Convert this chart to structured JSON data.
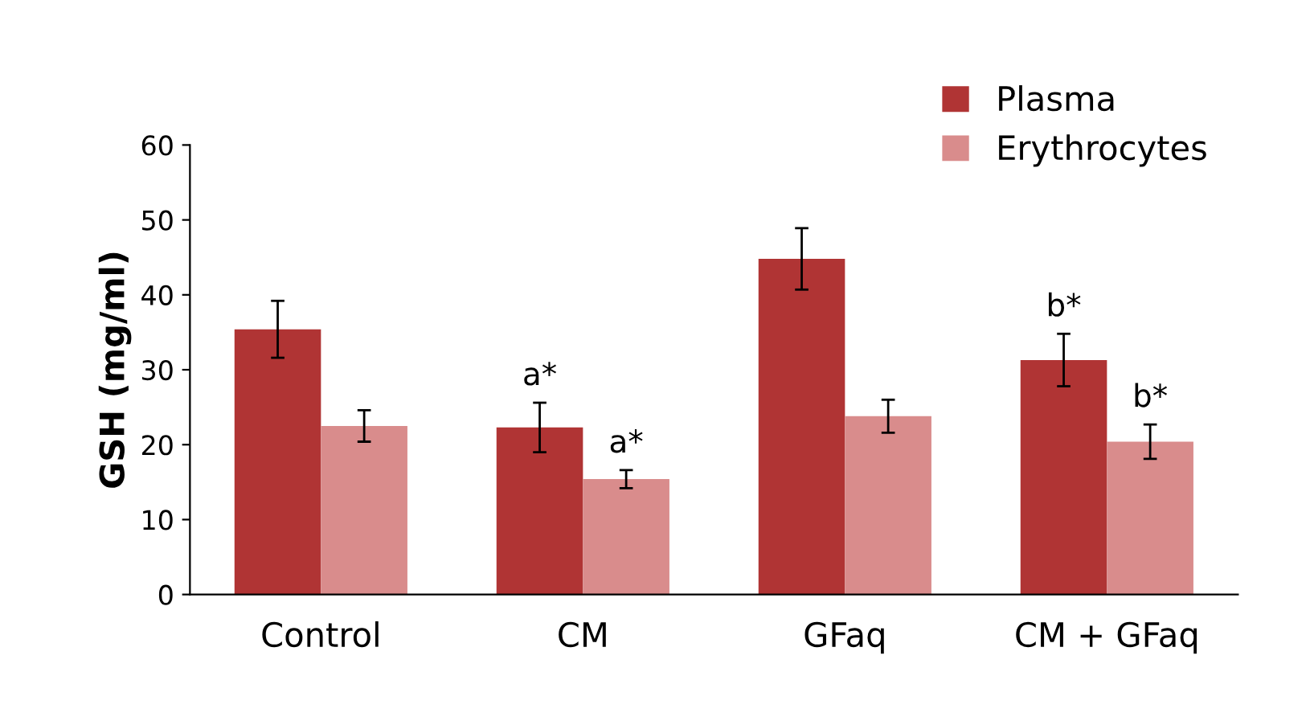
{
  "chart_data": {
    "type": "bar",
    "ylabel": "GSH (mg/ml)",
    "categories": [
      "Control",
      "CM",
      "GFaq",
      "CM + GFaq"
    ],
    "series": [
      {
        "name": "Plasma",
        "color": "#b03434",
        "values": [
          35.4,
          22.3,
          44.8,
          31.3
        ],
        "errors": [
          3.8,
          3.3,
          4.1,
          3.5
        ],
        "value_labels": [
          null,
          "a*",
          null,
          "b*"
        ]
      },
      {
        "name": "Erythrocytes",
        "color": "#d98c8c",
        "values": [
          22.5,
          15.4,
          23.8,
          20.4
        ],
        "errors": [
          2.1,
          1.2,
          2.2,
          2.3
        ],
        "value_labels": [
          null,
          "a*",
          null,
          "b*"
        ]
      }
    ],
    "ylim": [
      0,
      60
    ],
    "yticks": [
      0,
      10,
      20,
      30,
      40,
      50,
      60
    ],
    "legend": "top right"
  }
}
